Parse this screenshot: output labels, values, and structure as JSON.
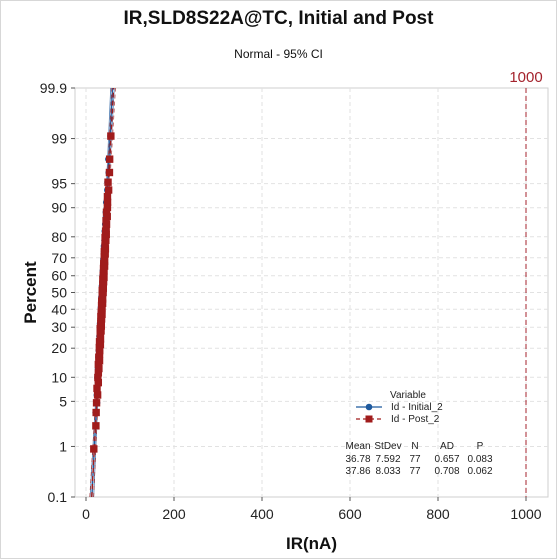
{
  "chart_data": {
    "type": "scatter",
    "title": "IR,SLD8S22A@TC, Initial and Post",
    "subtitle": "Normal - 95% CI",
    "xlabel": "IR(nA)",
    "ylabel": "Percent",
    "scale": "normal probability",
    "xlim": [
      -25,
      1050
    ],
    "xticks": [
      0,
      200,
      400,
      600,
      800,
      1000
    ],
    "ylim": [
      0.1,
      99.9
    ],
    "yticks": [
      0.1,
      1,
      5,
      10,
      20,
      30,
      40,
      50,
      60,
      70,
      80,
      90,
      95,
      99,
      99.9
    ],
    "ytick_labels": [
      "0.1",
      "1",
      "5",
      "10",
      "20",
      "30",
      "40",
      "50",
      "60",
      "70",
      "80",
      "90",
      "95",
      "99",
      "99.9"
    ],
    "grid": true,
    "reference_line": {
      "x": 1000,
      "label": "1000",
      "color": "#a4232d"
    },
    "legend": {
      "title": "Variable",
      "position": "bottom-right"
    },
    "series": [
      {
        "name": "Id - Initial_2",
        "mean": 36.78,
        "stdev": 7.592,
        "n": 77,
        "color": "#1f5a9e",
        "marker": "circle",
        "line": "solid"
      },
      {
        "name": "Id - Post_2",
        "mean": 37.86,
        "stdev": 8.033,
        "n": 77,
        "color": "#a01c1c",
        "marker": "square",
        "line": "dashed"
      }
    ],
    "stats_table": {
      "headers": [
        "Mean",
        "StDev",
        "N",
        "AD",
        "P"
      ],
      "rows": [
        [
          "36.78",
          "7.592",
          "77",
          "0.657",
          "0.083"
        ],
        [
          "37.86",
          "8.033",
          "77",
          "0.708",
          "0.062"
        ]
      ]
    }
  }
}
